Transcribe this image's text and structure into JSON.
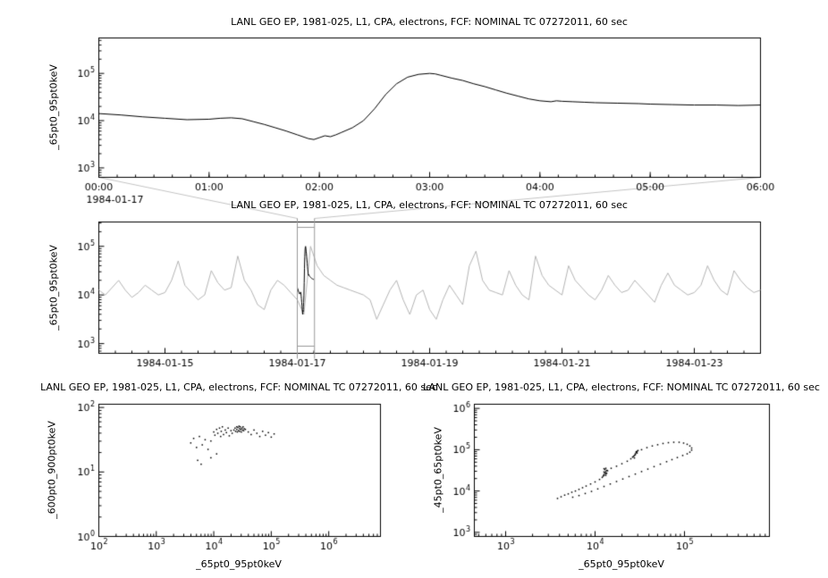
{
  "window": {
    "background": "#ffffff",
    "foreground": "#000000"
  },
  "chart_data": [
    {
      "id": "event-timeseries",
      "type": "line",
      "title": "LANL GEO EP, 1981-025, L1, CPA, electrons, FCF: NOMINAL TC 07272011, 60 sec",
      "ylabel": "_65pt0_95pt0keV",
      "line_color": "#000000",
      "x_axis": {
        "scale": "linear",
        "unit": "hours",
        "min": 0,
        "max": 6,
        "major": [
          0,
          1,
          2,
          3,
          4,
          5,
          6
        ],
        "major_labels": [
          "00:00",
          "01:00",
          "02:00",
          "03:00",
          "04:00",
          "05:00",
          "06:00"
        ],
        "minor_step": 0.16667,
        "date_label": "1984-01-17"
      },
      "y_axis": {
        "scale": "log10",
        "min": 2.8,
        "max": 5.75,
        "labeled_exponents": [
          3,
          4,
          5
        ]
      },
      "series": {
        "x_hours": [
          0.0,
          0.2,
          0.4,
          0.6,
          0.8,
          1.0,
          1.1,
          1.2,
          1.3,
          1.4,
          1.5,
          1.6,
          1.7,
          1.8,
          1.9,
          1.95,
          2.0,
          2.05,
          2.1,
          2.15,
          2.2,
          2.3,
          2.4,
          2.5,
          2.6,
          2.7,
          2.8,
          2.9,
          3.0,
          3.05,
          3.1,
          3.2,
          3.3,
          3.4,
          3.5,
          3.6,
          3.7,
          3.8,
          3.9,
          4.0,
          4.1,
          4.15,
          4.2,
          4.3,
          4.4,
          4.5,
          4.7,
          4.9,
          5.0,
          5.2,
          5.4,
          5.6,
          5.8,
          6.0
        ],
        "log10_flux": [
          4.15,
          4.12,
          4.08,
          4.05,
          4.02,
          4.03,
          4.05,
          4.06,
          4.04,
          3.98,
          3.92,
          3.85,
          3.78,
          3.7,
          3.62,
          3.6,
          3.64,
          3.68,
          3.66,
          3.7,
          3.75,
          3.85,
          4.0,
          4.25,
          4.55,
          4.78,
          4.92,
          4.98,
          5.0,
          4.99,
          4.96,
          4.9,
          4.85,
          4.78,
          4.72,
          4.65,
          4.58,
          4.52,
          4.46,
          4.42,
          4.4,
          4.42,
          4.41,
          4.4,
          4.39,
          4.38,
          4.37,
          4.36,
          4.35,
          4.34,
          4.33,
          4.33,
          4.32,
          4.33
        ]
      }
    },
    {
      "id": "context-timeseries",
      "type": "line",
      "title": "LANL GEO EP, 1981-025, L1, CPA, electrons, FCF: NOMINAL TC 07272011, 60 sec",
      "ylabel": "_65pt0_95pt0keV",
      "line_color": "#b4b4b4",
      "highlight_color": "#000000",
      "x_axis": {
        "scale": "linear",
        "unit": "days",
        "min": 14,
        "max": 24,
        "major": [
          15,
          17,
          19,
          21,
          23
        ],
        "major_labels": [
          "1984-01-15",
          "1984-01-17",
          "1984-01-19",
          "1984-01-21",
          "1984-01-23"
        ],
        "minor_step": 0.25
      },
      "y_axis": {
        "scale": "log10",
        "min": 2.8,
        "max": 5.5,
        "labeled_exponents": [
          3,
          4,
          5
        ]
      },
      "series": {
        "start_day": 14.0,
        "step_days": 0.1,
        "log10_flux": [
          4.1,
          4.0,
          4.15,
          4.3,
          4.1,
          3.95,
          4.05,
          4.2,
          4.1,
          4.0,
          4.05,
          4.3,
          4.7,
          4.2,
          4.05,
          3.9,
          4.0,
          4.5,
          4.25,
          4.1,
          4.15,
          4.8,
          4.3,
          4.1,
          3.8,
          3.7,
          4.1,
          4.3,
          4.2,
          4.05,
          3.9,
          3.6,
          5.0,
          4.6,
          4.4,
          4.3,
          4.2,
          4.15,
          4.1,
          4.05,
          4.0,
          3.9,
          3.5,
          3.8,
          4.1,
          4.3,
          3.9,
          3.6,
          4.0,
          4.1,
          3.7,
          3.5,
          3.9,
          4.2,
          4.0,
          3.8,
          4.6,
          4.9,
          4.3,
          4.1,
          4.05,
          4.0,
          4.5,
          4.2,
          4.0,
          3.9,
          4.8,
          4.4,
          4.2,
          4.1,
          4.0,
          4.6,
          4.3,
          4.15,
          4.0,
          3.9,
          4.1,
          4.4,
          4.2,
          4.05,
          4.1,
          4.3,
          4.15,
          4.0,
          3.85,
          4.2,
          4.45,
          4.2,
          4.1,
          4.0,
          4.05,
          4.2,
          4.6,
          4.3,
          4.1,
          4.0,
          4.5,
          4.3,
          4.15,
          4.05,
          4.1
        ]
      },
      "selection": {
        "start_day": 17.0,
        "end_day": 17.26,
        "color": "#999999",
        "connector_color": "#c4c4c4"
      }
    },
    {
      "id": "scatter-600-900",
      "type": "scatter",
      "title": "LANL GEO EP, 1981-025, L1, CPA, electrons, FCF: NOMINAL TC 07272011, 60 sec",
      "xlabel": "_65pt0_95pt0keV",
      "ylabel": "_600pt0_900pt0keV",
      "point_color": "#000000",
      "x_axis": {
        "scale": "log10",
        "min": 2,
        "max": 6.9,
        "labeled_exponents": [
          2,
          3,
          4,
          5,
          6
        ]
      },
      "y_axis": {
        "scale": "log10",
        "min": 0,
        "max": 2.05,
        "labeled_exponents": [
          0,
          1,
          2
        ]
      },
      "points_log10": [
        [
          4.35,
          1.65
        ],
        [
          4.37,
          1.68
        ],
        [
          4.38,
          1.63
        ],
        [
          4.4,
          1.7
        ],
        [
          4.4,
          1.66
        ],
        [
          4.41,
          1.62
        ],
        [
          4.42,
          1.69
        ],
        [
          4.43,
          1.64
        ],
        [
          4.44,
          1.71
        ],
        [
          4.45,
          1.67
        ],
        [
          4.45,
          1.63
        ],
        [
          4.46,
          1.7
        ],
        [
          4.47,
          1.66
        ],
        [
          4.48,
          1.62
        ],
        [
          4.49,
          1.68
        ],
        [
          4.5,
          1.65
        ],
        [
          4.51,
          1.7
        ],
        [
          4.52,
          1.64
        ],
        [
          4.53,
          1.67
        ],
        [
          4.55,
          1.66
        ],
        [
          4.0,
          1.62
        ],
        [
          4.02,
          1.57
        ],
        [
          4.05,
          1.66
        ],
        [
          4.07,
          1.6
        ],
        [
          4.1,
          1.68
        ],
        [
          4.12,
          1.55
        ],
        [
          4.13,
          1.63
        ],
        [
          4.15,
          1.7
        ],
        [
          4.17,
          1.58
        ],
        [
          4.2,
          1.65
        ],
        [
          4.22,
          1.61
        ],
        [
          4.25,
          1.68
        ],
        [
          4.27,
          1.56
        ],
        [
          4.3,
          1.64
        ],
        [
          4.32,
          1.6
        ],
        [
          4.6,
          1.62
        ],
        [
          4.65,
          1.58
        ],
        [
          4.7,
          1.65
        ],
        [
          4.75,
          1.6
        ],
        [
          4.8,
          1.55
        ],
        [
          4.85,
          1.63
        ],
        [
          4.9,
          1.57
        ],
        [
          4.95,
          1.61
        ],
        [
          5.0,
          1.54
        ],
        [
          5.05,
          1.59
        ],
        [
          3.6,
          1.45
        ],
        [
          3.65,
          1.52
        ],
        [
          3.7,
          1.38
        ],
        [
          3.75,
          1.55
        ],
        [
          3.8,
          1.42
        ],
        [
          3.85,
          1.5
        ],
        [
          3.9,
          1.35
        ],
        [
          3.95,
          1.48
        ],
        [
          3.72,
          1.18
        ],
        [
          3.78,
          1.12
        ],
        [
          3.95,
          1.22
        ],
        [
          4.05,
          1.28
        ]
      ]
    },
    {
      "id": "scatter-45-65",
      "type": "scatter",
      "title": "LANL GEO EP, 1981-025, L1, CPA, electrons, FCF: NOMINAL TC 07272011, 60 sec",
      "xlabel": "_65pt0_95pt0keV",
      "ylabel": "_45pt0_65pt0keV",
      "point_color": "#000000",
      "x_axis": {
        "scale": "log10",
        "min": 2.65,
        "max": 5.95,
        "labeled_exponents": [
          3,
          4,
          5
        ]
      },
      "y_axis": {
        "scale": "log10",
        "min": 2.9,
        "max": 6.1,
        "labeled_exponents": [
          3,
          4,
          5,
          6
        ]
      },
      "points_log10": [
        [
          3.58,
          3.82
        ],
        [
          3.62,
          3.86
        ],
        [
          3.66,
          3.9
        ],
        [
          3.7,
          3.93
        ],
        [
          3.74,
          3.97
        ],
        [
          3.78,
          4.0
        ],
        [
          3.82,
          4.04
        ],
        [
          3.86,
          4.08
        ],
        [
          3.9,
          4.12
        ],
        [
          3.95,
          4.17
        ],
        [
          4.0,
          4.22
        ],
        [
          4.05,
          4.28
        ],
        [
          4.08,
          4.33
        ],
        [
          4.1,
          4.38
        ],
        [
          4.12,
          4.42
        ],
        [
          4.09,
          4.36
        ],
        [
          4.1,
          4.4
        ],
        [
          4.11,
          4.44
        ],
        [
          4.12,
          4.47
        ],
        [
          4.13,
          4.5
        ],
        [
          4.11,
          4.52
        ],
        [
          4.1,
          4.46
        ],
        [
          4.12,
          4.38
        ],
        [
          4.13,
          4.43
        ],
        [
          4.14,
          4.49
        ],
        [
          4.1,
          4.54
        ],
        [
          4.12,
          4.55
        ],
        [
          4.18,
          4.55
        ],
        [
          4.24,
          4.6
        ],
        [
          4.3,
          4.66
        ],
        [
          4.36,
          4.72
        ],
        [
          4.4,
          4.78
        ],
        [
          4.42,
          4.82
        ],
        [
          4.44,
          4.86
        ],
        [
          4.45,
          4.9
        ],
        [
          4.46,
          4.93
        ],
        [
          4.47,
          4.96
        ],
        [
          4.48,
          4.98
        ],
        [
          4.43,
          4.84
        ],
        [
          4.45,
          4.88
        ],
        [
          4.47,
          4.92
        ],
        [
          4.44,
          4.8
        ],
        [
          4.46,
          4.95
        ],
        [
          4.52,
          5.0
        ],
        [
          4.58,
          5.05
        ],
        [
          4.64,
          5.09
        ],
        [
          4.7,
          5.12
        ],
        [
          4.76,
          5.15
        ],
        [
          4.82,
          5.17
        ],
        [
          4.88,
          5.18
        ],
        [
          4.94,
          5.18
        ],
        [
          4.99,
          5.16
        ],
        [
          5.03,
          5.13
        ],
        [
          5.06,
          5.09
        ],
        [
          5.08,
          5.04
        ],
        [
          5.08,
          4.99
        ],
        [
          5.06,
          4.94
        ],
        [
          5.03,
          4.9
        ],
        [
          4.98,
          4.86
        ],
        [
          4.92,
          4.81
        ],
        [
          4.86,
          4.76
        ],
        [
          4.8,
          4.71
        ],
        [
          4.73,
          4.65
        ],
        [
          4.66,
          4.59
        ],
        [
          4.59,
          4.53
        ],
        [
          4.52,
          4.47
        ],
        [
          4.45,
          4.41
        ],
        [
          4.38,
          4.35
        ],
        [
          4.31,
          4.29
        ],
        [
          4.24,
          4.23
        ],
        [
          4.17,
          4.17
        ],
        [
          4.1,
          4.11
        ],
        [
          4.03,
          4.05
        ],
        [
          3.96,
          3.99
        ],
        [
          3.89,
          3.94
        ],
        [
          3.82,
          3.89
        ],
        [
          3.75,
          3.85
        ]
      ]
    }
  ]
}
